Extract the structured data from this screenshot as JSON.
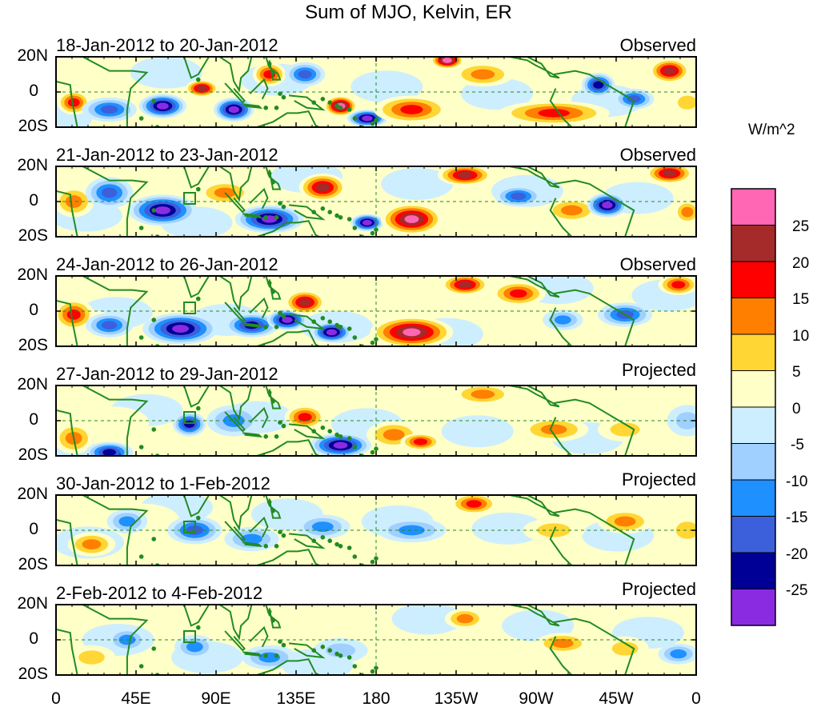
{
  "figure_title": "Sum of MJO, Kelvin, ER",
  "chart_data": {
    "type": "heatmap",
    "title": "Sum of MJO, Kelvin, ER",
    "colorbar": {
      "unit": "W/m^2",
      "tick_labels": [
        "25",
        "20",
        "15",
        "10",
        "5",
        "0",
        "-5",
        "-10",
        "-15",
        "-20",
        "-25"
      ],
      "levels": [
        {
          "range": "> 25",
          "color": "#ff66b3"
        },
        {
          "range": "20 to 25",
          "color": "#a52a2a"
        },
        {
          "range": "15 to 20",
          "color": "#ff0000"
        },
        {
          "range": "10 to 15",
          "color": "#ff7f00"
        },
        {
          "range": "5 to 10",
          "color": "#ffd633"
        },
        {
          "range": "0 to 5",
          "color": "#ffffc8"
        },
        {
          "range": "-5 to 0",
          "color": "#cdeeff"
        },
        {
          "range": "-10 to -5",
          "color": "#9fd0ff"
        },
        {
          "range": "-15 to -10",
          "color": "#1e90ff"
        },
        {
          "range": "-20 to -15",
          "color": "#3c5fdc"
        },
        {
          "range": "-25 to -20",
          "color": "#000096"
        },
        {
          "range": "< -25",
          "color": "#8a2be2"
        }
      ]
    },
    "x_axis": {
      "ticks": [
        "0",
        "45E",
        "90E",
        "135E",
        "180",
        "135W",
        "90W",
        "45W",
        "0"
      ],
      "range_deg": [
        0,
        360
      ]
    },
    "y_axis": {
      "ticks": [
        "20N",
        "0",
        "20S"
      ],
      "range_deg": [
        -20,
        20
      ]
    },
    "panels": [
      {
        "dates": "18-Jan-2012 to 20-Jan-2012",
        "status": "Observed"
      },
      {
        "dates": "21-Jan-2012 to 23-Jan-2012",
        "status": "Observed"
      },
      {
        "dates": "24-Jan-2012 to 26-Jan-2012",
        "status": "Observed"
      },
      {
        "dates": "27-Jan-2012 to 29-Jan-2012",
        "status": "Projected"
      },
      {
        "dates": "30-Jan-2012 to 1-Feb-2012",
        "status": "Projected"
      },
      {
        "dates": "2-Feb-2012 to 4-Feb-2012",
        "status": "Projected"
      }
    ]
  }
}
